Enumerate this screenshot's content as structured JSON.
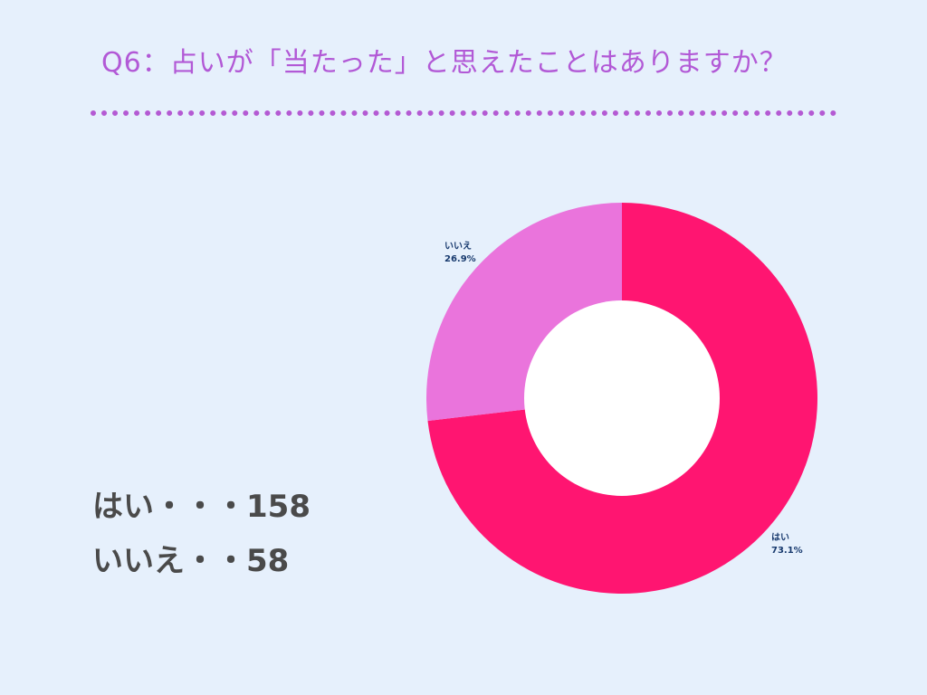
{
  "title": "Q6：占いが「当たった」と思えたことはありますか？",
  "counts": [
    {
      "label": "はい・・・158"
    },
    {
      "label": "いいえ・・58"
    }
  ],
  "chart_data": {
    "type": "pie",
    "donut": true,
    "categories": [
      "はい",
      "いいえ"
    ],
    "values": [
      158,
      58
    ],
    "percent_labels": [
      "73.1%",
      "26.9%"
    ],
    "colors": [
      "#ff1571",
      "#ea74dc"
    ],
    "hole_color": "#ffffff"
  }
}
